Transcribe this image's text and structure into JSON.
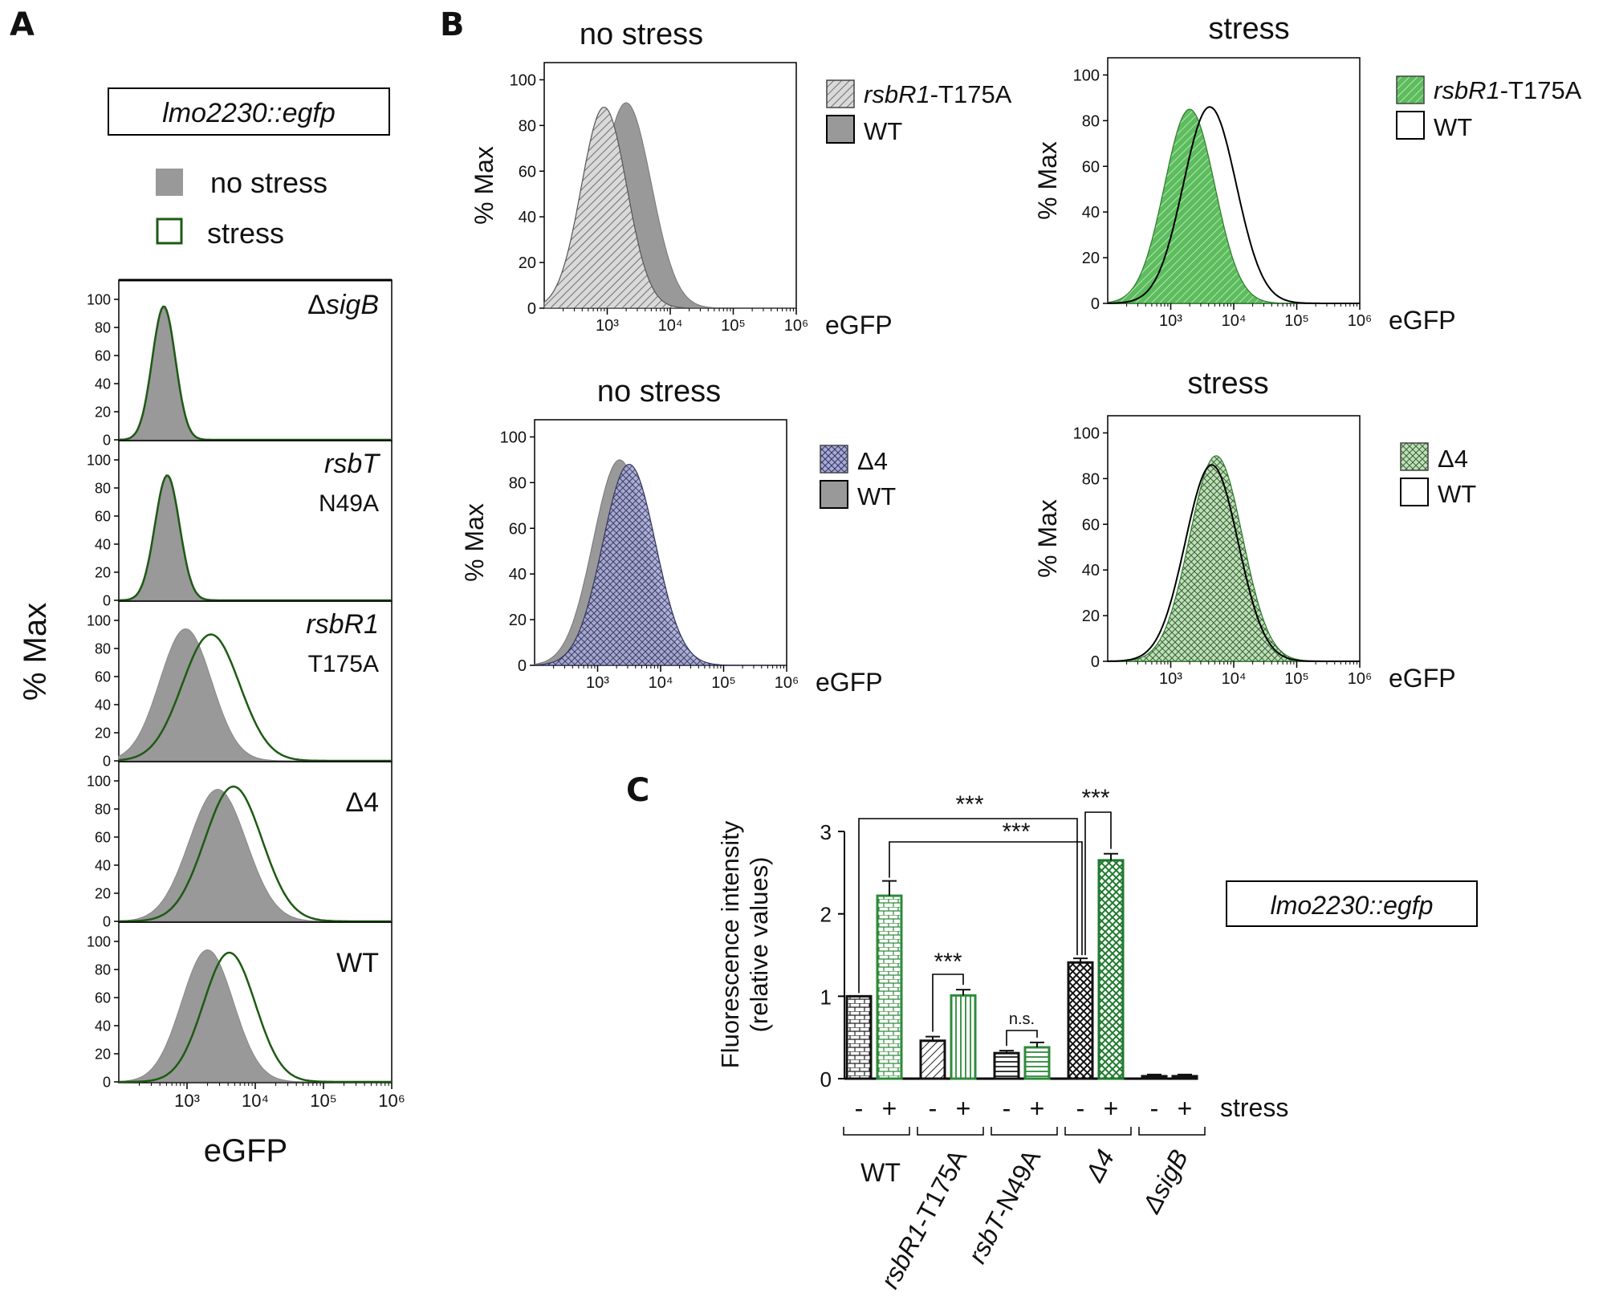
{
  "chart_data": [
    {
      "panel": "A",
      "type": "area",
      "construct": "lmo2230::egfp",
      "legend": [
        {
          "label": "no stress",
          "fill": "#999999"
        },
        {
          "label": "stress",
          "line": "#1e5a14"
        }
      ],
      "ylabel": "% Max",
      "xlabel": "eGFP",
      "x_scale": "log10",
      "xlim": [
        100,
        1000000
      ],
      "ylim": [
        0,
        100
      ],
      "y_ticks": [
        0,
        20,
        40,
        60,
        80,
        100
      ],
      "x_ticks": [
        "10³",
        "10⁴",
        "10⁵",
        "10⁶"
      ],
      "rows": [
        {
          "label_parts": [
            "ΔsigB"
          ],
          "no_stress_peak": {
            "log": 2.65,
            "width": 0.17,
            "height": 94
          },
          "stress_peak": {
            "log": 2.66,
            "width": 0.17,
            "height": 95
          }
        },
        {
          "label_parts": [
            "rsbT",
            "N49A"
          ],
          "no_stress_peak": {
            "log": 2.7,
            "width": 0.18,
            "height": 88
          },
          "stress_peak": {
            "log": 2.71,
            "width": 0.18,
            "height": 89
          }
        },
        {
          "label_parts": [
            "rsbR1",
            "T175A"
          ],
          "no_stress_peak": {
            "log": 2.98,
            "width": 0.38,
            "height": 94
          },
          "stress_peak": {
            "log": 3.35,
            "width": 0.42,
            "height": 90
          }
        },
        {
          "label_parts": [
            "Δ4"
          ],
          "no_stress_peak": {
            "log": 3.45,
            "width": 0.42,
            "height": 94
          },
          "stress_peak": {
            "log": 3.68,
            "width": 0.42,
            "height": 96
          }
        },
        {
          "label_parts": [
            "WT"
          ],
          "no_stress_peak": {
            "log": 3.3,
            "width": 0.38,
            "height": 94
          },
          "stress_peak": {
            "log": 3.62,
            "width": 0.38,
            "height": 92
          }
        }
      ]
    },
    {
      "panel": "B",
      "type": "area",
      "ylabel": "% Max",
      "xlabel": "eGFP",
      "x_scale": "log10",
      "xlim": [
        100,
        1000000
      ],
      "ylim": [
        0,
        100
      ],
      "y_ticks": [
        0,
        20,
        40,
        60,
        80,
        100
      ],
      "x_ticks": [
        "10³",
        "10⁴",
        "10⁵",
        "10⁶"
      ],
      "subplots": [
        {
          "title": "no stress",
          "legend": [
            [
              "rsbR1",
              "-T175A"
            ],
            [
              "WT"
            ]
          ],
          "mutant_peak": {
            "log": 2.95,
            "width": 0.36,
            "height": 88
          },
          "wt_peak": {
            "log": 3.3,
            "width": 0.4,
            "height": 90
          }
        },
        {
          "title": "stress",
          "legend": [
            [
              "rsbR1",
              "-T175A"
            ],
            [
              "WT"
            ]
          ],
          "mutant_peak": {
            "log": 3.3,
            "width": 0.4,
            "height": 85
          },
          "wt_peak": {
            "log": 3.62,
            "width": 0.42,
            "height": 86
          }
        },
        {
          "title": "no stress",
          "legend": [
            [
              "Δ4"
            ],
            [
              "WT"
            ]
          ],
          "mutant_peak": {
            "log": 3.5,
            "width": 0.42,
            "height": 88
          },
          "wt_peak": {
            "log": 3.35,
            "width": 0.42,
            "height": 90
          }
        },
        {
          "title": "stress",
          "legend": [
            [
              "Δ4"
            ],
            [
              "WT"
            ]
          ],
          "mutant_peak": {
            "log": 3.72,
            "width": 0.42,
            "height": 90
          },
          "wt_peak": {
            "log": 3.65,
            "width": 0.42,
            "height": 86
          }
        }
      ]
    },
    {
      "panel": "C",
      "type": "bar",
      "construct": "lmo2230::egfp",
      "ylabel": "Fluorescence intensity",
      "ylabel2": "(relative values)",
      "ylim": [
        0,
        3
      ],
      "y_ticks": [
        0,
        1,
        2,
        3
      ],
      "stress_label": "stress",
      "stress_signs": [
        "-",
        "+"
      ],
      "groups": [
        {
          "label_parts": [
            "WT"
          ],
          "no_stress": 1.0,
          "stress": 2.22,
          "no_stress_err": 0.0,
          "stress_err": 0.18
        },
        {
          "label_parts": [
            "rsbR1",
            "-T175A"
          ],
          "no_stress": 0.46,
          "stress": 1.01,
          "no_stress_err": 0.05,
          "stress_err": 0.07
        },
        {
          "label_parts": [
            "rsbT",
            "-N49A"
          ],
          "no_stress": 0.31,
          "stress": 0.38,
          "no_stress_err": 0.03,
          "stress_err": 0.06
        },
        {
          "label_parts": [
            "Δ4"
          ],
          "no_stress": 1.41,
          "stress": 2.65,
          "no_stress_err": 0.05,
          "stress_err": 0.08
        },
        {
          "label_parts": [
            "ΔsigB"
          ],
          "no_stress": 0.03,
          "stress": 0.03,
          "no_stress_err": 0.02,
          "stress_err": 0.02
        }
      ],
      "significance": [
        "***",
        "***",
        "***",
        "***",
        "n.s."
      ]
    }
  ],
  "panel_letters": [
    "A",
    "B",
    "C"
  ]
}
